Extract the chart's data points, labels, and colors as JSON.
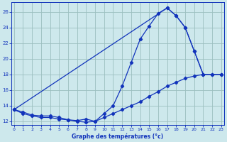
{
  "title": "Graphe des températures (°c)",
  "bg_color": "#cde8ec",
  "grid_color": "#9bbfbf",
  "line_color": "#1133bb",
  "xlim_min": -0.3,
  "xlim_max": 23.3,
  "ylim_min": 11.5,
  "ylim_max": 27.2,
  "xticks": [
    0,
    1,
    2,
    3,
    4,
    5,
    6,
    7,
    8,
    9,
    10,
    11,
    12,
    13,
    14,
    15,
    16,
    17,
    18,
    19,
    20,
    21,
    22,
    23
  ],
  "yticks": [
    12,
    14,
    16,
    18,
    20,
    22,
    24,
    26
  ],
  "curve1_x": [
    0,
    1,
    2,
    3,
    4,
    5,
    6,
    7,
    8,
    9,
    10,
    11,
    12,
    13,
    14,
    15,
    16,
    17,
    18,
    19,
    20,
    21
  ],
  "curve1_y": [
    13.5,
    13.2,
    12.8,
    12.7,
    12.7,
    12.5,
    12.2,
    12.1,
    12.3,
    12.0,
    13.0,
    14.0,
    16.5,
    19.5,
    22.5,
    24.2,
    25.8,
    26.5,
    25.5,
    24.0,
    21.0,
    18.0
  ],
  "curve2_x": [
    0,
    17,
    18,
    19,
    20,
    21,
    22,
    23
  ],
  "curve2_y": [
    13.5,
    26.5,
    25.5,
    24.0,
    21.0,
    18.0,
    18.0,
    18.0
  ],
  "curve3_x": [
    0,
    1,
    2,
    3,
    4,
    5,
    6,
    7,
    8,
    9,
    10,
    11,
    12,
    13,
    14,
    15,
    16,
    17,
    18,
    19,
    20,
    21,
    22,
    23
  ],
  "curve3_y": [
    13.5,
    13.0,
    12.7,
    12.5,
    12.5,
    12.3,
    12.2,
    12.0,
    11.9,
    12.0,
    12.5,
    13.0,
    13.5,
    14.0,
    14.5,
    15.2,
    15.8,
    16.5,
    17.0,
    17.5,
    17.8,
    18.0,
    18.0,
    18.0
  ]
}
